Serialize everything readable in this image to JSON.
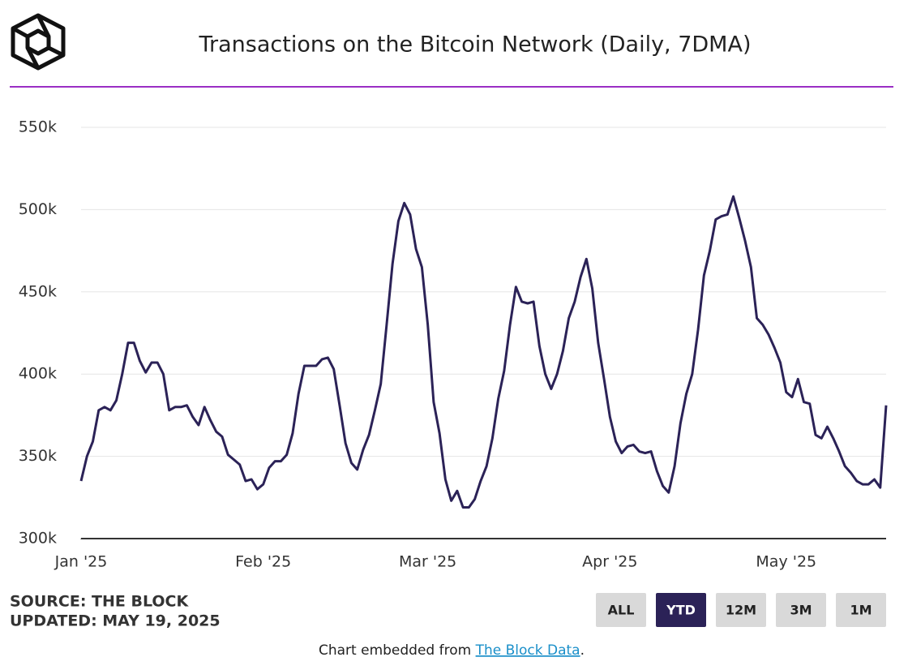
{
  "chart_data": {
    "type": "line",
    "title": "Transactions on the Bitcoin Network (Daily, 7DMA)",
    "series": [
      {
        "name": "Transactions",
        "color": "#2b2257",
        "values": [
          335000,
          350000,
          359000,
          378000,
          380000,
          378000,
          384000,
          400000,
          419000,
          419000,
          408000,
          401000,
          407000,
          407000,
          400000,
          378000,
          380000,
          380000,
          381000,
          374000,
          369000,
          380000,
          372000,
          365000,
          362000,
          351000,
          348000,
          345000,
          335000,
          336000,
          330000,
          333000,
          343000,
          347000,
          347000,
          351000,
          364000,
          388000,
          405000,
          405000,
          405000,
          409000,
          410000,
          403000,
          381000,
          358000,
          346000,
          342000,
          354000,
          363000,
          378000,
          394000,
          430000,
          467000,
          493000,
          504000,
          497000,
          476000,
          465000,
          430000,
          383000,
          364000,
          336000,
          323000,
          329000,
          319000,
          319000,
          324000,
          335000,
          344000,
          361000,
          385000,
          402000,
          430000,
          453000,
          444000,
          443000,
          444000,
          417000,
          400000,
          391000,
          400000,
          414000,
          434000,
          444000,
          459000,
          470000,
          452000,
          419000,
          397000,
          374000,
          359000,
          352000,
          356000,
          357000,
          353000,
          352000,
          353000,
          341000,
          332000,
          328000,
          344000,
          370000,
          388000,
          400000,
          427000,
          460000,
          475000,
          494000,
          496000,
          497000,
          508000,
          495000,
          481000,
          465000,
          434000,
          430000,
          424000,
          416000,
          407000,
          389000,
          386000,
          397000,
          383000,
          382000,
          363000,
          361000,
          368000,
          361000,
          353000,
          344000,
          340000,
          335000,
          333000,
          333000,
          336000,
          331000,
          381000
        ]
      }
    ],
    "xlim": [
      0,
      137
    ],
    "xticks": [
      {
        "value": 0,
        "label": "Jan '25"
      },
      {
        "value": 31,
        "label": "Feb '25"
      },
      {
        "value": 59,
        "label": "Mar '25"
      },
      {
        "value": 90,
        "label": "Apr '25"
      },
      {
        "value": 120,
        "label": "May '25"
      }
    ],
    "ylim": [
      300000,
      550000
    ],
    "yticks": [
      {
        "value": 300000,
        "label": "300k"
      },
      {
        "value": 350000,
        "label": "350k"
      },
      {
        "value": 400000,
        "label": "400k"
      },
      {
        "value": 450000,
        "label": "450k"
      },
      {
        "value": 500000,
        "label": "500k"
      },
      {
        "value": 550000,
        "label": "550k"
      }
    ],
    "grid": true
  },
  "source": "SOURCE: THE BLOCK",
  "updated": "UPDATED: MAY 19, 2025",
  "buttons": [
    {
      "label": "ALL"
    },
    {
      "label": "YTD",
      "active": true
    },
    {
      "label": "12M"
    },
    {
      "label": "3M"
    },
    {
      "label": "1M"
    }
  ],
  "footer": {
    "text": "Chart embedded from ",
    "link": "The Block Data",
    "end": "."
  }
}
